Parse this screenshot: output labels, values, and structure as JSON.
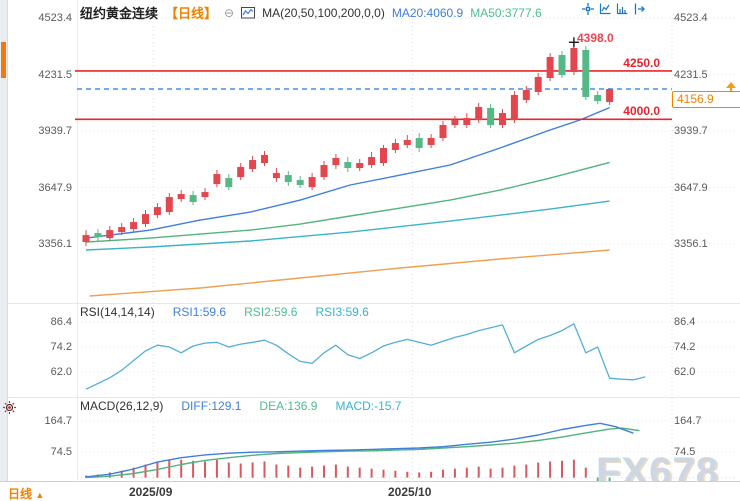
{
  "header": {
    "title": "纽约黄金连续",
    "period_tag": "【日线】",
    "collapse_glyph": "⊖",
    "ma_label": "MA(20,50,100,200,0,0)",
    "ma20_label": "MA20:4060.9",
    "ma50_label": "MA50:3777.6",
    "toolbar_icons": [
      "crosshair-icon",
      "axis-setting-icon",
      "axis-scale-icon",
      "pane-expand-icon"
    ]
  },
  "colors": {
    "up": "#e2474e",
    "down": "#57b887",
    "ma20": "#3f7fd9",
    "ma50": "#52b380",
    "ma100": "#3bb3c8",
    "ma200": "#eda152",
    "rsi_line": "#55aed8",
    "diff": "#3f7fd9",
    "dea": "#52b380",
    "hist_pos": "#d9575e",
    "hist_neg": "#57b887",
    "level_line": "#e8252c",
    "last_price_line": "#1f7ae0",
    "accent": "#f08200"
  },
  "main": {
    "levels": [
      {
        "label": "4250.0",
        "value": 4250.0
      },
      {
        "label": "4000.0",
        "value": 4000.0
      }
    ],
    "high_label": "4398.0",
    "last_price": "4156.9"
  },
  "rsi_panel": {
    "title": "RSI(14,14,14)",
    "legend1": "RSI1:59.6",
    "legend2": "RSI2:59.6",
    "legend3": "RSI3:59.6"
  },
  "macd_panel": {
    "title": "MACD(26,12,9)",
    "legend1": "DIFF:129.1",
    "legend2": "DEA:136.9",
    "legend3": "MACD:-15.7"
  },
  "footer": {
    "period": "日线",
    "arrow": "▲",
    "dates": [
      "2025/09",
      "2025/10"
    ]
  },
  "watermark": "FX678",
  "chart_data": {
    "type": "candlestick",
    "title": "纽约黄金连续 日线",
    "price_axis": {
      "tick_labels": [
        "4523.4",
        "4231.5",
        "3939.7",
        "3647.9",
        "3356.1"
      ],
      "ticks": [
        4523.4,
        4231.5,
        3939.7,
        3647.9,
        3356.1
      ]
    },
    "rsi_axis": {
      "tick_labels": [
        "86.4",
        "74.2",
        "62.0"
      ],
      "ticks": [
        86.4,
        74.2,
        62.0
      ]
    },
    "macd_axis": {
      "tick_labels": [
        "164.7",
        "74.5"
      ],
      "ticks": [
        164.7,
        74.5
      ]
    },
    "x_labels": [
      "2025/09",
      "2025/10"
    ],
    "high_annotation": {
      "index": 41,
      "price": 4398.0
    },
    "last_price": 4156.9,
    "candles": [
      [
        3366.1,
        3428.2,
        3345.5,
        3402.3
      ],
      [
        3412.6,
        3433.3,
        3371.3,
        3392.0
      ],
      [
        3386.8,
        3448.8,
        3371.3,
        3428.2
      ],
      [
        3417.8,
        3464.4,
        3402.3,
        3443.7
      ],
      [
        3433.3,
        3490.2,
        3417.8,
        3469.5
      ],
      [
        3459.2,
        3531.5,
        3443.7,
        3510.8
      ],
      [
        3505.7,
        3567.7,
        3490.2,
        3547.0
      ],
      [
        3521.2,
        3619.3,
        3505.7,
        3598.7
      ],
      [
        3588.3,
        3634.8,
        3572.8,
        3614.2
      ],
      [
        3609.0,
        3629.7,
        3557.3,
        3572.8
      ],
      [
        3598.7,
        3645.2,
        3583.2,
        3624.5
      ],
      [
        3665.8,
        3738.2,
        3650.3,
        3717.5
      ],
      [
        3696.8,
        3717.5,
        3634.8,
        3650.3
      ],
      [
        3702.0,
        3774.4,
        3686.5,
        3753.7
      ],
      [
        3743.4,
        3810.5,
        3727.8,
        3789.9
      ],
      [
        3774.4,
        3836.3,
        3758.9,
        3815.7
      ],
      [
        3696.8,
        3748.5,
        3676.2,
        3722.7
      ],
      [
        3712.3,
        3733.0,
        3655.5,
        3676.2
      ],
      [
        3686.5,
        3707.2,
        3645.2,
        3660.7
      ],
      [
        3650.3,
        3722.7,
        3634.8,
        3702.0
      ],
      [
        3702.0,
        3784.7,
        3686.5,
        3764.0
      ],
      [
        3764.0,
        3820.9,
        3743.4,
        3800.2
      ],
      [
        3779.5,
        3805.4,
        3727.8,
        3748.5
      ],
      [
        3748.5,
        3795.0,
        3733.0,
        3774.4
      ],
      [
        3764.0,
        3831.2,
        3748.5,
        3805.4
      ],
      [
        3774.4,
        3867.4,
        3758.9,
        3851.9
      ],
      [
        3841.5,
        3898.4,
        3826.0,
        3877.7
      ],
      [
        3867.4,
        3919.0,
        3851.9,
        3893.2
      ],
      [
        3903.5,
        3929.4,
        3831.2,
        3851.9
      ],
      [
        3867.4,
        3924.2,
        3851.9,
        3903.5
      ],
      [
        3903.5,
        3991.4,
        3888.0,
        3970.7
      ],
      [
        3970.7,
        4017.2,
        3955.2,
        3996.5
      ],
      [
        3970.7,
        4032.7,
        3955.2,
        4006.9
      ],
      [
        3996.5,
        4084.4,
        3981.0,
        4063.7
      ],
      [
        4058.5,
        4079.2,
        3955.2,
        3970.7
      ],
      [
        3970.7,
        4053.3,
        3955.2,
        4032.7
      ],
      [
        3996.5,
        4146.4,
        3981.0,
        4125.7
      ],
      [
        4099.9,
        4172.2,
        4084.4,
        4151.5
      ],
      [
        4141.2,
        4239.3,
        4125.7,
        4218.7
      ],
      [
        4213.5,
        4342.6,
        4198.0,
        4321.9
      ],
      [
        4332.3,
        4352.9,
        4213.5,
        4229.0
      ],
      [
        4244.5,
        4398.0,
        4229.0,
        4368.4
      ],
      [
        4358.1,
        4378.8,
        4099.9,
        4115.4
      ],
      [
        4125.7,
        4146.4,
        4079.2,
        4094.7
      ],
      [
        4089.5,
        4161.9,
        4074.0,
        4156.9
      ]
    ],
    "ma20": [
      [
        0,
        3386.8
      ],
      [
        5.4,
        3428.2
      ],
      [
        9.6,
        3479.9
      ],
      [
        13.8,
        3521.2
      ],
      [
        18,
        3583.2
      ],
      [
        22.2,
        3660.7
      ],
      [
        26.4,
        3712.3
      ],
      [
        30.6,
        3764.0
      ],
      [
        34.8,
        3851.9
      ],
      [
        39,
        3944.9
      ],
      [
        41.5,
        3996.5
      ],
      [
        44,
        4060.9
      ]
    ],
    "ma50": [
      [
        0,
        3366.1
      ],
      [
        5.4,
        3386.8
      ],
      [
        9.6,
        3407.5
      ],
      [
        13.8,
        3428.2
      ],
      [
        18,
        3459.2
      ],
      [
        22.2,
        3500.6
      ],
      [
        26.4,
        3541.8
      ],
      [
        30.6,
        3583.2
      ],
      [
        34.8,
        3634.8
      ],
      [
        39,
        3696.8
      ],
      [
        44,
        3777.6
      ]
    ],
    "ma100": [
      [
        0,
        3325.1
      ],
      [
        5.4,
        3340.6
      ],
      [
        13.8,
        3371.6
      ],
      [
        22.2,
        3417.8
      ],
      [
        30.6,
        3474.7
      ],
      [
        39,
        3536.7
      ],
      [
        44,
        3578.0
      ]
    ],
    "ma200": [
      [
        0.3,
        3087.5
      ],
      [
        9.6,
        3128.8
      ],
      [
        18,
        3180.5
      ],
      [
        26.4,
        3232.1
      ],
      [
        34.8,
        3278.6
      ],
      [
        44,
        3325.1
      ]
    ],
    "rsi": [
      [
        0,
        53.6
      ],
      [
        1,
        56.4
      ],
      [
        2,
        59.2
      ],
      [
        3,
        62.9
      ],
      [
        4,
        67.6
      ],
      [
        5,
        72.3
      ],
      [
        6,
        75.1
      ],
      [
        7,
        74.2
      ],
      [
        8,
        71.4
      ],
      [
        9,
        74.7
      ],
      [
        10,
        76.1
      ],
      [
        11,
        76.5
      ],
      [
        12,
        74.2
      ],
      [
        13,
        75.6
      ],
      [
        14,
        76.5
      ],
      [
        15,
        77.5
      ],
      [
        16,
        75.1
      ],
      [
        17,
        70.9
      ],
      [
        18,
        67.2
      ],
      [
        19,
        66.2
      ],
      [
        20,
        71.4
      ],
      [
        21,
        75.1
      ],
      [
        22,
        70.4
      ],
      [
        23,
        68.6
      ],
      [
        24,
        71.4
      ],
      [
        25,
        74.7
      ],
      [
        26,
        76.5
      ],
      [
        27,
        77.9
      ],
      [
        28,
        76.5
      ],
      [
        29,
        75.1
      ],
      [
        30,
        77.0
      ],
      [
        31,
        78.9
      ],
      [
        32,
        80.3
      ],
      [
        33,
        82.2
      ],
      [
        34,
        83.6
      ],
      [
        35,
        85.0
      ],
      [
        36,
        71.4
      ],
      [
        37,
        74.7
      ],
      [
        38,
        77.9
      ],
      [
        39,
        79.8
      ],
      [
        40,
        82.2
      ],
      [
        41,
        85.5
      ],
      [
        42,
        71.4
      ],
      [
        43,
        74.2
      ],
      [
        44,
        59.0
      ],
      [
        45,
        58.5
      ],
      [
        46,
        58.2
      ],
      [
        47,
        59.6
      ]
    ],
    "macd_diff": [
      [
        0,
        2
      ],
      [
        2,
        10
      ],
      [
        4,
        25
      ],
      [
        6,
        45
      ],
      [
        8,
        58
      ],
      [
        10,
        66
      ],
      [
        12,
        71
      ],
      [
        14,
        74
      ],
      [
        16,
        75
      ],
      [
        18,
        77
      ],
      [
        20,
        79
      ],
      [
        22,
        80
      ],
      [
        24,
        82
      ],
      [
        26,
        84
      ],
      [
        28,
        86
      ],
      [
        30,
        90
      ],
      [
        32,
        97
      ],
      [
        34,
        103
      ],
      [
        36,
        112
      ],
      [
        38,
        124
      ],
      [
        40,
        140
      ],
      [
        42,
        152
      ],
      [
        43.2,
        158
      ],
      [
        44.5,
        148
      ],
      [
        46,
        129.1
      ]
    ],
    "macd_dea": [
      [
        0,
        0
      ],
      [
        2,
        4
      ],
      [
        4,
        12
      ],
      [
        6,
        24
      ],
      [
        8,
        38
      ],
      [
        10,
        50
      ],
      [
        12,
        58
      ],
      [
        14,
        65
      ],
      [
        16,
        70
      ],
      [
        18,
        73
      ],
      [
        20,
        75
      ],
      [
        22,
        77
      ],
      [
        24,
        78
      ],
      [
        26,
        80
      ],
      [
        28,
        82
      ],
      [
        30,
        86
      ],
      [
        32,
        90
      ],
      [
        34,
        95
      ],
      [
        36,
        100
      ],
      [
        38,
        108
      ],
      [
        40,
        118
      ],
      [
        42,
        130
      ],
      [
        44,
        141
      ],
      [
        45,
        144
      ],
      [
        46.5,
        136.9
      ]
    ],
    "macd_hist": [
      6,
      9,
      15,
      20,
      29,
      38,
      47,
      52,
      52,
      49,
      47,
      52,
      44,
      41,
      44,
      47,
      38,
      35,
      29,
      32,
      35,
      38,
      32,
      29,
      26,
      23,
      20,
      17,
      15,
      17,
      23,
      26,
      29,
      32,
      26,
      29,
      35,
      38,
      44,
      47,
      49,
      52,
      29,
      -12,
      -15.7
    ]
  }
}
